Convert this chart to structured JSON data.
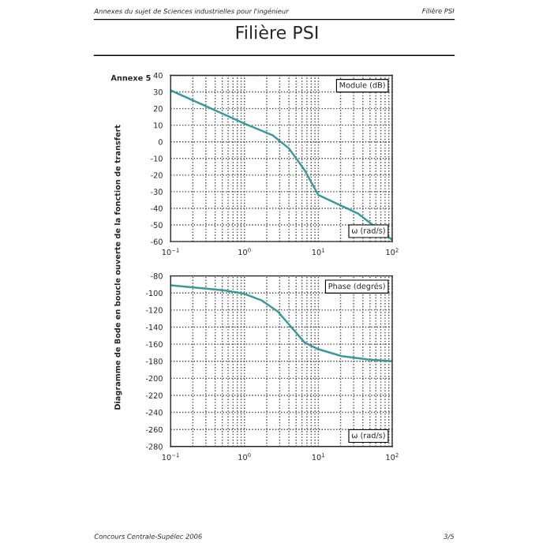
{
  "chart_data": [
    {
      "type": "line",
      "title": "Filière PSI",
      "annotations": [
        "Annexes du sujet de Sciences industrielles pour l'ingénieur",
        "Filière PSI",
        "Annexe 5",
        "Module (dB)",
        "ω (rad/s)",
        "Concours Centrale-Supélec 2006",
        "3/5"
      ],
      "x": [
        0.1,
        1,
        2.4,
        4.0,
        6.5,
        10,
        34,
        100
      ],
      "series": [
        {
          "color": "#3a9a9a",
          "values": [
            31,
            11,
            4,
            -4,
            -17,
            -32,
            -43,
            -59
          ]
        }
      ],
      "log": "x",
      "xlim": [
        0.1,
        100
      ],
      "xticks": [
        {
          "value": 0.1,
          "label": "10$^{−1}$"
        },
        {
          "value": 1,
          "label": "10$^{0}$"
        },
        {
          "value": 10,
          "label": "10$^{1}$"
        },
        {
          "value": 100,
          "label": "10$^{2}$"
        }
      ],
      "ylim": [
        -60,
        40
      ],
      "yticks": [
        -60,
        -50,
        -40,
        -30,
        -20,
        -10,
        0,
        10,
        20,
        30,
        40
      ],
      "grid": true
    },
    {
      "type": "line",
      "ylabel": "Diagramme de Bode en boucle ouverte de la fonction de transfert",
      "annotations": [
        "Phase (degrés)",
        "ω (rad/s)"
      ],
      "x": [
        0.1,
        0.54,
        1,
        1.73,
        2.84,
        4.3,
        6.5,
        10,
        20.7,
        47,
        100
      ],
      "series": [
        {
          "color": "#3a9a9a",
          "values": [
            -91,
            -97,
            -101,
            -109,
            -122,
            -140,
            -158,
            -166,
            -174,
            -178,
            -180
          ]
        }
      ],
      "log": "x",
      "xlim": [
        0.1,
        100
      ],
      "xticks": [
        {
          "value": 0.1,
          "label": "10$^{−1}$"
        },
        {
          "value": 1,
          "label": "10$^{0}$"
        },
        {
          "value": 10,
          "label": "10$^{1}$"
        },
        {
          "value": 100,
          "label": "10$^{2}$"
        }
      ],
      "ylim": [
        -280,
        -80
      ],
      "yticks": [
        -280,
        -260,
        -240,
        -220,
        -200,
        -180,
        -160,
        -140,
        -120,
        -100,
        -80
      ],
      "grid": true
    }
  ]
}
